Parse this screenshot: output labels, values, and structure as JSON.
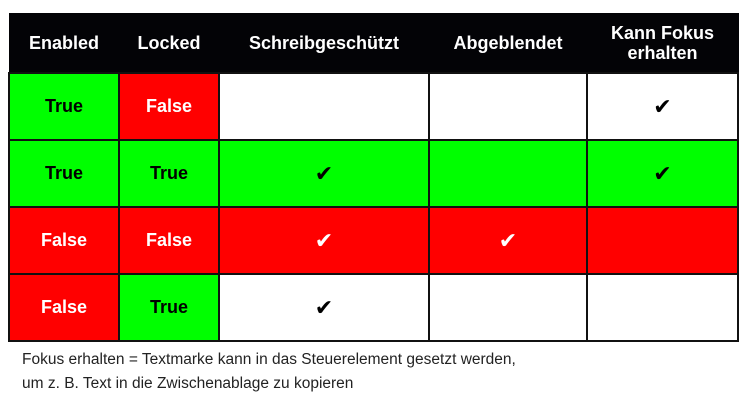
{
  "headers": [
    "Enabled",
    "Locked",
    "Schreibgeschützt",
    "Abgeblendet",
    "Kann Fokus erhalten"
  ],
  "rows": [
    {
      "cells": [
        {
          "text": "True",
          "color": "green"
        },
        {
          "text": "False",
          "color": "red"
        },
        {
          "text": "",
          "color": "white"
        },
        {
          "text": "",
          "color": "white"
        },
        {
          "text": "✔",
          "color": "white"
        }
      ]
    },
    {
      "cells": [
        {
          "text": "True",
          "color": "green"
        },
        {
          "text": "True",
          "color": "green"
        },
        {
          "text": "✔",
          "color": "green"
        },
        {
          "text": "",
          "color": "green"
        },
        {
          "text": "✔",
          "color": "green"
        }
      ]
    },
    {
      "cells": [
        {
          "text": "False",
          "color": "red"
        },
        {
          "text": "False",
          "color": "red"
        },
        {
          "text": "✔",
          "color": "red"
        },
        {
          "text": "✔",
          "color": "red"
        },
        {
          "text": "",
          "color": "red"
        }
      ]
    },
    {
      "cells": [
        {
          "text": "False",
          "color": "red"
        },
        {
          "text": "True",
          "color": "green"
        },
        {
          "text": "✔",
          "color": "white"
        },
        {
          "text": "",
          "color": "white"
        },
        {
          "text": "",
          "color": "white"
        }
      ]
    }
  ],
  "colors": {
    "green": "#00ff00",
    "red": "#ff0000",
    "header": "#030306"
  },
  "note": [
    "Fokus erhalten = Textmarke kann in das Steuerelement gesetzt werden,",
    "um z. B. Text in die Zwischenablage zu kopieren"
  ]
}
